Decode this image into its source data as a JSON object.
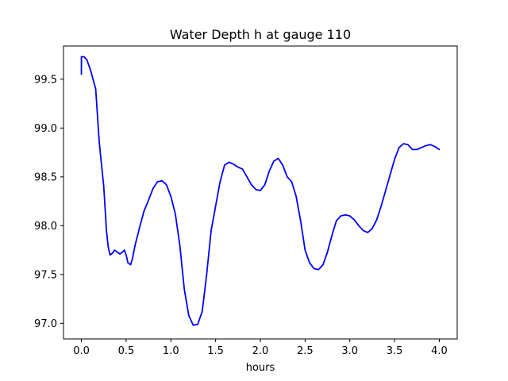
{
  "chart_data": {
    "type": "line",
    "title": "Water Depth h at gauge 110",
    "xlabel": "hours",
    "ylabel": "",
    "xlim": [
      -0.2,
      4.2
    ],
    "ylim": [
      96.84,
      99.84
    ],
    "xticks": [
      0.0,
      0.5,
      1.0,
      1.5,
      2.0,
      2.5,
      3.0,
      3.5,
      4.0
    ],
    "xtick_labels": [
      "0.0",
      "0.5",
      "1.0",
      "1.5",
      "2.0",
      "2.5",
      "3.0",
      "3.5",
      "4.0"
    ],
    "yticks": [
      97.0,
      97.5,
      98.0,
      98.5,
      99.0,
      99.5
    ],
    "ytick_labels": [
      "97.0",
      "97.5",
      "98.0",
      "98.5",
      "99.0",
      "99.5"
    ],
    "grid": false,
    "series": [
      {
        "color": "#0000ff",
        "x": [
          0.0,
          0.0,
          0.03,
          0.06,
          0.1,
          0.16,
          0.2,
          0.25,
          0.28,
          0.3,
          0.32,
          0.35,
          0.37,
          0.4,
          0.43,
          0.46,
          0.48,
          0.5,
          0.52,
          0.55,
          0.57,
          0.6,
          0.65,
          0.7,
          0.75,
          0.8,
          0.85,
          0.9,
          0.95,
          1.0,
          1.05,
          1.1,
          1.15,
          1.2,
          1.25,
          1.3,
          1.35,
          1.4,
          1.45,
          1.5,
          1.55,
          1.6,
          1.65,
          1.7,
          1.75,
          1.8,
          1.85,
          1.9,
          1.95,
          2.0,
          2.05,
          2.1,
          2.15,
          2.2,
          2.25,
          2.3,
          2.35,
          2.4,
          2.45,
          2.5,
          2.55,
          2.6,
          2.65,
          2.7,
          2.75,
          2.8,
          2.85,
          2.9,
          2.95,
          3.0,
          3.05,
          3.1,
          3.15,
          3.2,
          3.25,
          3.3,
          3.35,
          3.4,
          3.45,
          3.5,
          3.55,
          3.6,
          3.65,
          3.7,
          3.75,
          3.8,
          3.85,
          3.9,
          3.95,
          4.0
        ],
        "y": [
          99.55,
          99.73,
          99.73,
          99.7,
          99.6,
          99.4,
          98.85,
          98.4,
          97.95,
          97.78,
          97.7,
          97.72,
          97.75,
          97.73,
          97.71,
          97.73,
          97.75,
          97.7,
          97.62,
          97.6,
          97.66,
          97.8,
          97.98,
          98.15,
          98.26,
          98.38,
          98.45,
          98.46,
          98.42,
          98.3,
          98.12,
          97.8,
          97.35,
          97.08,
          96.98,
          96.99,
          97.12,
          97.5,
          97.95,
          98.2,
          98.45,
          98.62,
          98.65,
          98.63,
          98.6,
          98.58,
          98.5,
          98.42,
          98.37,
          98.36,
          98.42,
          98.56,
          98.66,
          98.69,
          98.62,
          98.5,
          98.45,
          98.3,
          98.05,
          97.75,
          97.62,
          97.56,
          97.55,
          97.6,
          97.73,
          97.9,
          98.05,
          98.1,
          98.11,
          98.1,
          98.06,
          98.0,
          97.95,
          97.93,
          97.97,
          98.06,
          98.2,
          98.36,
          98.52,
          98.68,
          98.8,
          98.84,
          98.83,
          98.78,
          98.78,
          98.8,
          98.82,
          98.83,
          98.81,
          98.78
        ]
      }
    ]
  }
}
